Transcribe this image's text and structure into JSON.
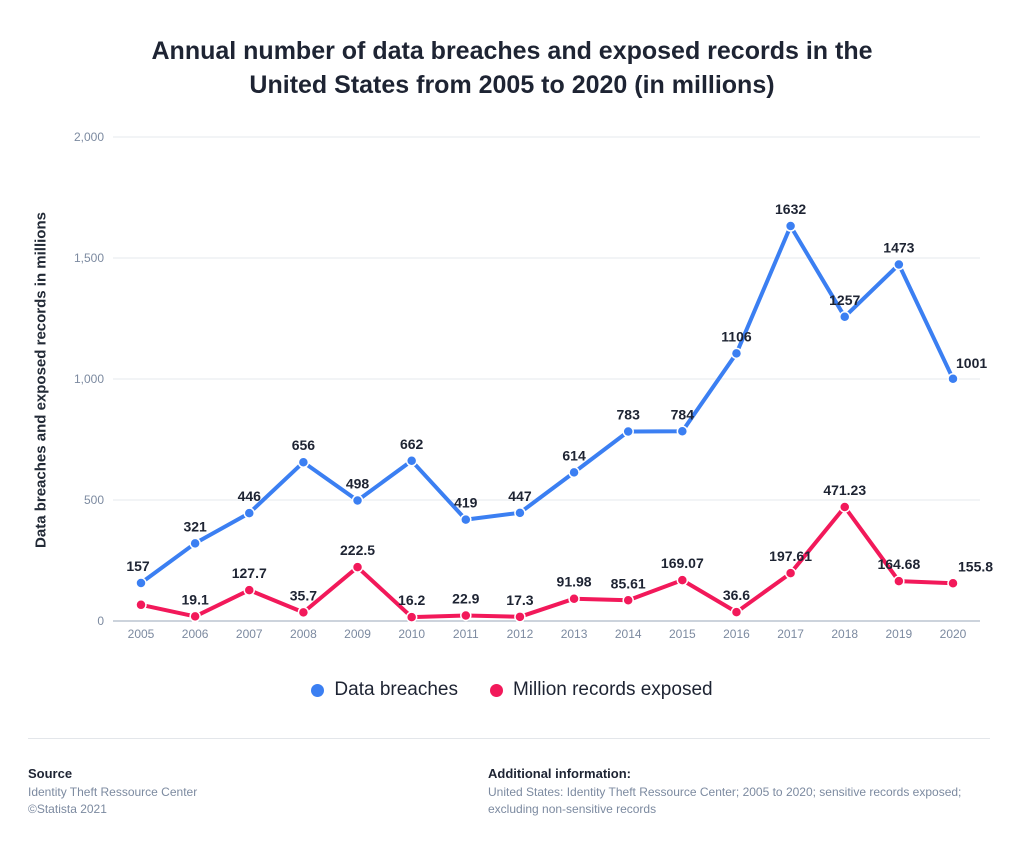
{
  "chart_data": {
    "type": "line",
    "title": "Annual number of data breaches and exposed records in the United States from 2005 to 2020 (in millions)",
    "ylabel": "Data breaches and exposed records in millions",
    "xlabel": "",
    "ylim": [
      0,
      2000
    ],
    "yticks": [
      0,
      500,
      1000,
      1500,
      2000
    ],
    "ytick_labels": [
      "0",
      "500",
      "1,000",
      "1,500",
      "2,000"
    ],
    "grid": true,
    "legend_position": "bottom",
    "categories": [
      "2005",
      "2006",
      "2007",
      "2008",
      "2009",
      "2010",
      "2011",
      "2012",
      "2013",
      "2014",
      "2015",
      "2016",
      "2017",
      "2018",
      "2019",
      "2020"
    ],
    "series": [
      {
        "name": "Data breaches",
        "color": "#3b7ff2",
        "values": [
          157,
          321,
          446,
          656,
          498,
          662,
          419,
          447,
          614,
          783,
          784,
          1106,
          1632,
          1257,
          1473,
          1001
        ],
        "labels": [
          "157",
          "321",
          "446",
          "656",
          "498",
          "662",
          "419",
          "447",
          "614",
          "783",
          "784",
          "1106",
          "1632",
          "1257",
          "1473",
          "1001"
        ]
      },
      {
        "name": "Million records exposed",
        "color": "#f2195a",
        "values": [
          66.9,
          19.1,
          127.7,
          35.7,
          222.5,
          16.2,
          22.9,
          17.3,
          91.98,
          85.61,
          169.07,
          36.6,
          197.61,
          471.23,
          164.68,
          155.8
        ],
        "labels": [
          "",
          "19.1",
          "127.7",
          "35.7",
          "222.5",
          "16.2",
          "22.9",
          "17.3",
          "91.98",
          "85.61",
          "169.07",
          "36.6",
          "197.61",
          "471.23",
          "164.68",
          "155.8"
        ]
      }
    ]
  },
  "footer": {
    "source_heading": "Source",
    "source_lines": [
      "Identity Theft Ressource Center",
      "©Statista 2021"
    ],
    "info_heading": "Additional information:",
    "info_text": "United States: Identity Theft Ressource Center; 2005 to 2020; sensitive records exposed; excluding non-sensitive records"
  }
}
